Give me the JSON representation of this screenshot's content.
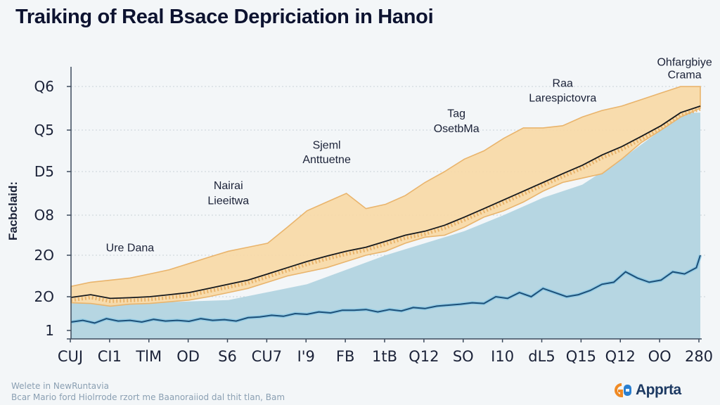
{
  "page": {
    "title": "Traiking of Real  Bsace Depriciation in Hanoi",
    "footer_line1": "Welete in NewRuntavia",
    "footer_line2": "Bcar Mario ford Hiolrrode rzort me Baanoraiiod dal thit tlan, Bam",
    "logo_text": "Apprta",
    "logo_mark_text": "G8",
    "colors": {
      "background": "#f3f6f8",
      "title": "#0d1330",
      "band_fill": "#f8d9a6",
      "band_edge": "#e9b46c",
      "median_line": "#15181c",
      "base_area": "#b6d6e2",
      "secondary_line": "#1c4f78",
      "secondary_glow": "#7cc3e6",
      "grid": "#c9d1d8",
      "axis": "#3c4a5c",
      "logo_orange": "#f08a24",
      "logo_blue": "#2a7fd0"
    }
  },
  "chart_data": {
    "type": "area",
    "title": "Traiking of Real  Bsace Depriciation in Hanoi",
    "xlabel": "",
    "ylabel": "Facbclaid:",
    "x_tick_labels": [
      "CUJ",
      "CI1",
      "TlM",
      "OD",
      "S6",
      "CU7",
      "I'9",
      "FB",
      "1tB",
      "Q12",
      "SO",
      "I10",
      "dL5",
      "Q15",
      "Q12",
      "OO",
      "280"
    ],
    "y_tick_labels": [
      "1",
      "2O",
      "2O",
      "O8",
      "D5",
      "Q5",
      "Q6"
    ],
    "y_range": [
      0,
      6
    ],
    "x_range": [
      0,
      16
    ],
    "grid": "horizontal-dotted",
    "legend": "none",
    "annotations": [
      {
        "text": "Ohfargbiye",
        "x": 15.6,
        "y": 6.5
      },
      {
        "text": "Crama",
        "x": 15.6,
        "y": 6.2
      },
      {
        "text": "Raa",
        "x": 12.5,
        "y": 6.0
      },
      {
        "text": "Larespictovra",
        "x": 12.5,
        "y": 5.65
      },
      {
        "text": "Tag",
        "x": 9.8,
        "y": 5.3
      },
      {
        "text": "OsetbMa",
        "x": 9.8,
        "y": 4.95
      },
      {
        "text": "Sjeml",
        "x": 6.5,
        "y": 4.55
      },
      {
        "text": "Anttuetne",
        "x": 6.5,
        "y": 4.2
      },
      {
        "text": "Nairai",
        "x": 4.0,
        "y": 3.6
      },
      {
        "text": "Lieeitwa",
        "x": 4.0,
        "y": 3.25
      },
      {
        "text": "Ure Dana",
        "x": 1.5,
        "y": 2.1
      }
    ],
    "series": [
      {
        "name": "band-upper",
        "x": [
          0,
          0.5,
          1,
          1.5,
          2,
          2.5,
          3,
          3.5,
          4,
          4.5,
          5,
          5.5,
          6,
          6.5,
          7,
          7.5,
          8,
          8.5,
          9,
          9.5,
          10,
          10.5,
          11,
          11.5,
          12,
          12.5,
          13,
          13.5,
          14,
          14.5,
          15,
          15.5,
          16
        ],
        "values": [
          1.25,
          1.35,
          1.4,
          1.45,
          1.55,
          1.65,
          1.8,
          1.95,
          2.1,
          2.2,
          2.3,
          2.7,
          3.1,
          3.3,
          3.5,
          3.15,
          3.25,
          3.45,
          3.75,
          4.0,
          4.3,
          4.5,
          4.8,
          5.05,
          5.05,
          5.1,
          5.3,
          5.45,
          5.55,
          5.7,
          5.85,
          6.05,
          6.2
        ]
      },
      {
        "name": "median",
        "x": [
          0,
          0.5,
          1,
          1.5,
          2,
          2.5,
          3,
          3.5,
          4,
          4.5,
          5,
          5.5,
          6,
          6.5,
          7,
          7.5,
          8,
          8.5,
          9,
          9.5,
          10,
          10.5,
          11,
          11.5,
          12,
          12.5,
          13,
          13.5,
          14,
          14.5,
          15,
          15.5,
          16
        ],
        "values": [
          0.98,
          1.05,
          0.95,
          0.97,
          1.0,
          1.05,
          1.1,
          1.2,
          1.3,
          1.4,
          1.55,
          1.7,
          1.85,
          1.98,
          2.1,
          2.2,
          2.35,
          2.5,
          2.6,
          2.75,
          2.95,
          3.15,
          3.35,
          3.55,
          3.75,
          3.95,
          4.15,
          4.4,
          4.6,
          4.85,
          5.1,
          5.4,
          5.55
        ]
      },
      {
        "name": "band-lower",
        "x": [
          0,
          0.5,
          1,
          1.5,
          2,
          2.5,
          3,
          3.5,
          4,
          4.5,
          5,
          5.5,
          6,
          6.5,
          7,
          7.5,
          8,
          8.5,
          9,
          9.5,
          10,
          10.5,
          11,
          11.5,
          12,
          12.5,
          13,
          13.5,
          14,
          14.5,
          15,
          15.5,
          16
        ],
        "values": [
          0.82,
          0.8,
          0.72,
          0.78,
          0.8,
          0.85,
          0.9,
          1.0,
          1.1,
          1.2,
          1.35,
          1.5,
          1.6,
          1.7,
          1.85,
          2.0,
          2.1,
          2.3,
          2.45,
          2.5,
          2.7,
          2.95,
          3.1,
          3.3,
          3.55,
          3.75,
          3.85,
          3.95,
          4.3,
          4.7,
          5.0,
          5.3,
          5.5
        ]
      },
      {
        "name": "base-area",
        "x": [
          0,
          2,
          4,
          6,
          8,
          10,
          11,
          12,
          13,
          14,
          15,
          15.6,
          16
        ],
        "values": [
          0.8,
          0.82,
          0.9,
          1.3,
          2.0,
          2.6,
          3.0,
          3.4,
          3.7,
          4.3,
          5.0,
          5.4,
          5.4
        ]
      },
      {
        "name": "secondary-line",
        "x": [
          0,
          0.3,
          0.6,
          0.9,
          1.2,
          1.5,
          1.8,
          2.1,
          2.4,
          2.7,
          3.0,
          3.3,
          3.6,
          3.9,
          4.2,
          4.5,
          4.8,
          5.1,
          5.4,
          5.7,
          6.0,
          6.3,
          6.6,
          6.9,
          7.2,
          7.5,
          7.8,
          8.1,
          8.4,
          8.7,
          9.0,
          9.3,
          9.6,
          9.9,
          10.2,
          10.5,
          10.8,
          11.1,
          11.4,
          11.7,
          12.0,
          12.3,
          12.6,
          12.9,
          13.2,
          13.5,
          13.8,
          14.1,
          14.4,
          14.7,
          15.0,
          15.3,
          15.6,
          15.9,
          16.0
        ],
        "values": [
          0.25,
          0.3,
          0.22,
          0.35,
          0.28,
          0.3,
          0.25,
          0.33,
          0.28,
          0.3,
          0.27,
          0.35,
          0.3,
          0.32,
          0.28,
          0.38,
          0.4,
          0.45,
          0.42,
          0.5,
          0.48,
          0.55,
          0.52,
          0.6,
          0.6,
          0.62,
          0.55,
          0.62,
          0.58,
          0.68,
          0.65,
          0.72,
          0.75,
          0.78,
          0.82,
          0.8,
          1.0,
          0.95,
          1.1,
          1.0,
          1.2,
          1.1,
          1.0,
          1.05,
          1.15,
          1.3,
          1.35,
          1.6,
          1.45,
          1.35,
          1.4,
          1.6,
          1.55,
          1.7,
          2.0
        ]
      }
    ]
  }
}
